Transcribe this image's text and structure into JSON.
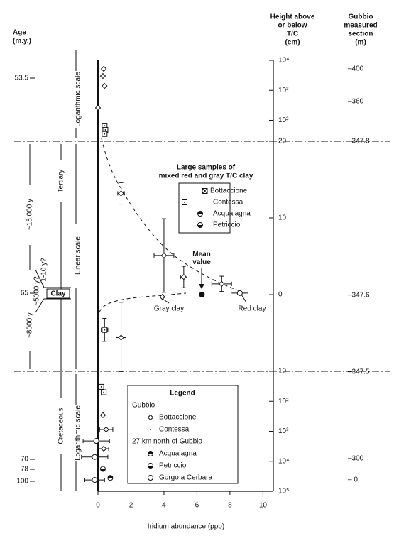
{
  "chart_data": {
    "type": "scatter",
    "x_label": "Iridium abundance (ppb)",
    "y_label_lines": [
      "Height above",
      "or below",
      "T/C",
      "(cm)"
    ],
    "xlim": [
      0,
      10.5
    ],
    "xticks": [
      0,
      2,
      4,
      6,
      8,
      10
    ],
    "yscale": "log-linear-log",
    "ylim": [
      -100000,
      10000
    ],
    "linear_ylim": [
      -10,
      20
    ],
    "yticks": [
      {
        "value": 10000,
        "label": "10⁴"
      },
      {
        "value": 1000,
        "label": "10³"
      },
      {
        "value": 100,
        "label": "10²"
      },
      20,
      10,
      0,
      {
        "value": -10,
        "label": "10"
      },
      {
        "value": -100,
        "label": "10²"
      },
      {
        "value": -1000,
        "label": "10³"
      },
      {
        "value": -10000,
        "label": "10⁴"
      },
      {
        "value": -100000,
        "label": "10⁵"
      }
    ],
    "grid": false,
    "color": "#111111",
    "legend_title": "Legend",
    "series": [
      {
        "name": "Bottaccione",
        "group": "Gubbio",
        "marker": "diamond",
        "x": [
          0.35,
          0.3,
          0.4,
          0.0,
          1.4,
          4.0,
          5.2,
          7.5,
          1.4,
          0.3,
          0.5,
          0.35
        ],
        "values": [
          5200,
          3000,
          1400,
          260,
          13.2,
          5.1,
          2.3,
          1.4,
          -5.6,
          -290,
          -870,
          -3800
        ],
        "x_err": [
          null,
          null,
          null,
          null,
          0.2,
          0.6,
          0.2,
          0.6,
          0.3,
          null,
          0.4,
          0.3
        ],
        "y_err": [
          null,
          null,
          null,
          null,
          1.4,
          4.8,
          1.4,
          1.0,
          4.6,
          null,
          null,
          null
        ]
      },
      {
        "name": "Contessa",
        "group": "Gubbio",
        "marker": "square",
        "x": [
          0.4,
          0.45,
          0.4,
          0.4,
          0.2,
          0.35
        ],
        "values": [
          66,
          48,
          35,
          -4.6,
          -33,
          -50
        ],
        "x_err": [
          null,
          null,
          null,
          0.2,
          null,
          null
        ],
        "y_err": [
          null,
          null,
          null,
          1.5,
          null,
          null
        ]
      },
      {
        "name": "Acqualagna",
        "group": "27 km north of Gubbio",
        "marker": "half",
        "x": [
          0.75
        ],
        "values": [
          -36000
        ],
        "x_err": [
          null
        ],
        "y_err": [
          null
        ]
      },
      {
        "name": "Petriccio",
        "group": "27 km north of Gubbio",
        "marker": "dot",
        "x": [
          0.3
        ],
        "values": [
          -18000
        ],
        "x_err": [
          null
        ],
        "y_err": [
          null
        ]
      },
      {
        "name": "Gorgo a Cerbara",
        "group": "27 km north of Gubbio",
        "marker": "circle",
        "x": [
          -0.1,
          -0.2,
          -0.2
        ],
        "values": [
          -2100,
          -7200,
          -42000
        ],
        "x_err": [
          0.8,
          0.8,
          0.6
        ],
        "y_err": [
          null,
          null,
          null
        ]
      }
    ],
    "points": [
      {
        "label": "Gray clay",
        "x": 3.9,
        "y": -0.3,
        "marker": "diamond"
      },
      {
        "label": "Red clay",
        "x": 8.6,
        "y": 0.2,
        "x_err": 0.5,
        "marker": "circle"
      },
      {
        "label": "Mean value",
        "x": 6.3,
        "y": 0,
        "marker": "filled"
      }
    ],
    "large_samples": {
      "title_lines": [
        "Large samples of",
        "mixed red and gray T/C clay"
      ],
      "entries": [
        "Bottaccione",
        "Contessa",
        "Acqualagna",
        "Petriccio"
      ]
    },
    "age_header": [
      "Age",
      "(m.y.)"
    ],
    "age_labels": [
      "53.5",
      "65",
      "70",
      "78",
      "100"
    ],
    "section_header": [
      "Gubbio",
      "measured",
      "section",
      "(m)"
    ],
    "section_labels": [
      "–400",
      "–360",
      "–347.8",
      "–347.6",
      "–347.5",
      "–300",
      "– 0"
    ],
    "annotations": {
      "log_top": "Logarithmic scale",
      "linear": "Linear scale",
      "log_bottom": "Logarithmic scale",
      "tertiary": "Tertiary",
      "cretaceous": "Cretaceous",
      "span_upper": "~15,000 y",
      "span_lower": "~8000 y",
      "span_clay": "~5000 y?",
      "span_clay_alt": "1-10 y?",
      "clay": "Clay"
    }
  }
}
